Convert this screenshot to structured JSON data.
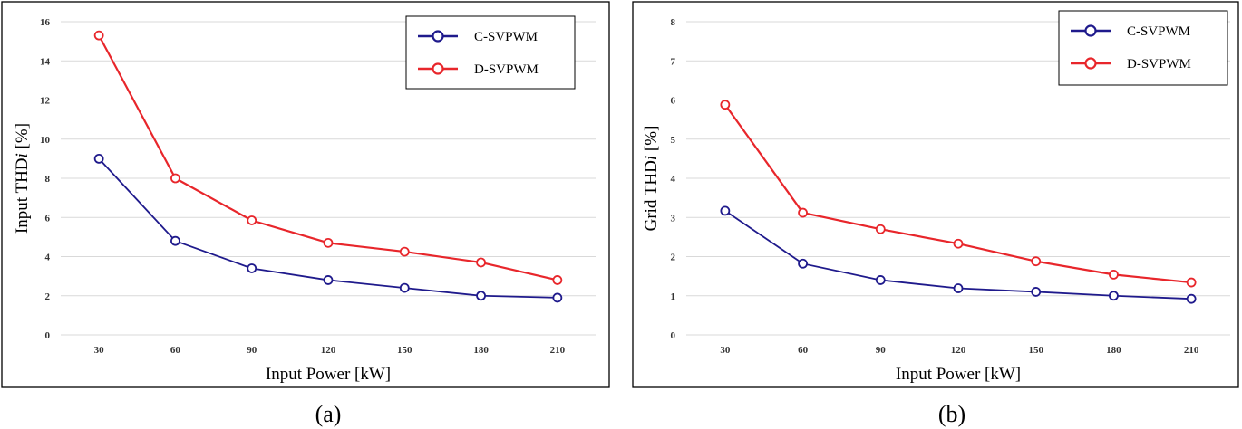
{
  "colors": {
    "c_svpwm": "#1f1a8c",
    "d_svpwm": "#e8262b",
    "grid": "#d9d9d9",
    "frame": "#000000"
  },
  "chart_data": [
    {
      "type": "line",
      "caption": "(a)",
      "xlabel": "Input Power [kW]",
      "ylabel_prefix": "Input THD",
      "ylabel_italic": "i",
      "ylabel_suffix": " [%]",
      "categories": [
        "30",
        "60",
        "90",
        "120",
        "150",
        "180",
        "210"
      ],
      "yticks": [
        "0",
        "2",
        "4",
        "6",
        "8",
        "10",
        "12",
        "14",
        "16"
      ],
      "ylim": [
        0,
        16
      ],
      "grid": true,
      "legend_position": "top-right",
      "series": [
        {
          "name": "C-SVPWM",
          "values": [
            9.0,
            4.8,
            3.4,
            2.8,
            2.4,
            2.0,
            1.9
          ]
        },
        {
          "name": "D-SVPWM",
          "values": [
            15.3,
            8.0,
            5.85,
            4.7,
            4.25,
            3.7,
            2.8
          ]
        }
      ]
    },
    {
      "type": "line",
      "caption": "(b)",
      "xlabel": "Input Power [kW]",
      "ylabel_prefix": "Grid THD",
      "ylabel_italic": "i",
      "ylabel_suffix": " [%]",
      "categories": [
        "30",
        "60",
        "90",
        "120",
        "150",
        "180",
        "210"
      ],
      "yticks": [
        "0",
        "1",
        "2",
        "3",
        "4",
        "5",
        "6",
        "7",
        "8"
      ],
      "ylim": [
        0,
        8
      ],
      "grid": true,
      "legend_position": "top-right",
      "series": [
        {
          "name": "C-SVPWM",
          "values": [
            3.17,
            1.82,
            1.4,
            1.19,
            1.1,
            1.0,
            0.92
          ]
        },
        {
          "name": "D-SVPWM",
          "values": [
            5.88,
            3.12,
            2.7,
            2.33,
            1.88,
            1.54,
            1.34
          ]
        }
      ]
    }
  ]
}
